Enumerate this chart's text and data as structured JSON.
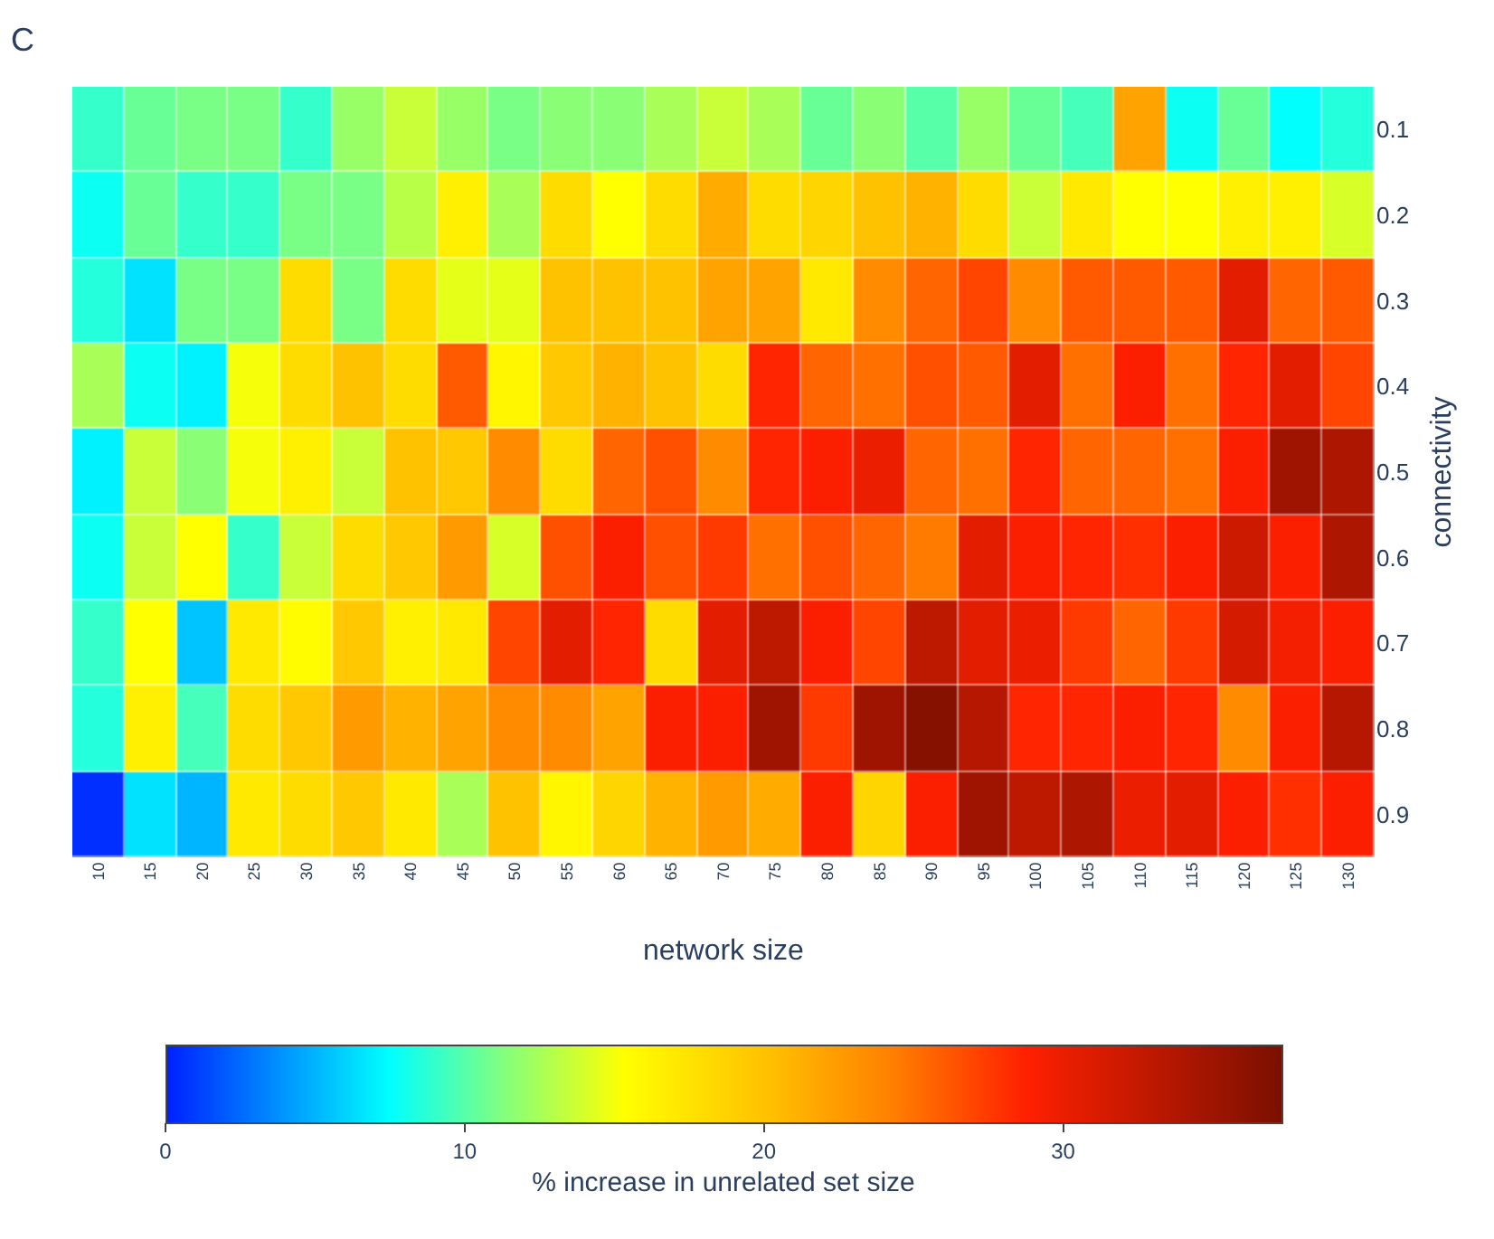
{
  "chart_data": {
    "type": "heatmap",
    "annotations": [
      "C"
    ],
    "xlabel": "network size",
    "ylabel": "connectivity",
    "clabel": "% increase in unrelated set size",
    "categories": [
      "10",
      "15",
      "20",
      "25",
      "30",
      "35",
      "40",
      "45",
      "50",
      "55",
      "60",
      "65",
      "70",
      "75",
      "80",
      "85",
      "90",
      "95",
      "100",
      "105",
      "110",
      "115",
      "120",
      "125",
      "130"
    ],
    "y_categories": [
      "0.1",
      "0.2",
      "0.3",
      "0.4",
      "0.5",
      "0.6",
      "0.7",
      "0.8",
      "0.9"
    ],
    "cells": [
      [
        9,
        10.5,
        11,
        11,
        9,
        12,
        13.5,
        12,
        11,
        11.5,
        11.5,
        12.5,
        13.5,
        12.5,
        10.5,
        11.5,
        10,
        12,
        10.5,
        9.5,
        22,
        7.8,
        10.5,
        7.5,
        8.5
      ],
      [
        7.8,
        10.5,
        9,
        9,
        11,
        11,
        13,
        16.5,
        12.5,
        18,
        15.3,
        18,
        21.5,
        18,
        18.5,
        20,
        21,
        18,
        13.5,
        17,
        15.3,
        15.3,
        16.5,
        16.5,
        14
      ],
      [
        8.5,
        6.5,
        11,
        11,
        18,
        11,
        18,
        14.5,
        14.5,
        20,
        20,
        20,
        22,
        22,
        17,
        23.5,
        25.5,
        27,
        23.5,
        26,
        26,
        26,
        30.5,
        25.5,
        26
      ],
      [
        12.5,
        7.8,
        7,
        15,
        18,
        20,
        18,
        26,
        16,
        19.5,
        21,
        20,
        18,
        28.5,
        25.5,
        25,
        26.5,
        26,
        30.5,
        25,
        29,
        25,
        28.5,
        30.5,
        27
      ],
      [
        7,
        13.5,
        11.5,
        15,
        16.5,
        13.5,
        20,
        19.5,
        23.5,
        18,
        25.5,
        26.5,
        23.5,
        28.5,
        29,
        30,
        25.5,
        25,
        28.5,
        25.5,
        25.5,
        25,
        29,
        35,
        34
      ],
      [
        7.8,
        13.5,
        15.3,
        9,
        13.5,
        18,
        19.5,
        22.5,
        14,
        26.5,
        29,
        26.5,
        27.5,
        25,
        26.5,
        25.5,
        24.5,
        30.5,
        29,
        28.5,
        28,
        29,
        32,
        29,
        34
      ],
      [
        9,
        15.3,
        5.5,
        17,
        15.5,
        19.5,
        16.5,
        17,
        27,
        30.5,
        28.5,
        18,
        30.5,
        33,
        29,
        27,
        33,
        30.5,
        30,
        27.5,
        25.5,
        27.5,
        31.5,
        29.5,
        29
      ],
      [
        8.5,
        16.5,
        9.5,
        18,
        19.5,
        22.5,
        21,
        22,
        23.5,
        23.5,
        22,
        29,
        29,
        35,
        27.5,
        35,
        36.5,
        33.5,
        28.5,
        28.5,
        29,
        28.5,
        23.5,
        29,
        33.5
      ],
      [
        0.5,
        6.5,
        5,
        17,
        18,
        19.5,
        17,
        12.5,
        20,
        16,
        18.5,
        21,
        22.5,
        21.5,
        29,
        18.5,
        29,
        35,
        33,
        34,
        30,
        30.5,
        29,
        28,
        29
      ]
    ],
    "clim": [
      0,
      37.3
    ],
    "cticks": [
      0,
      10,
      20,
      30
    ]
  }
}
